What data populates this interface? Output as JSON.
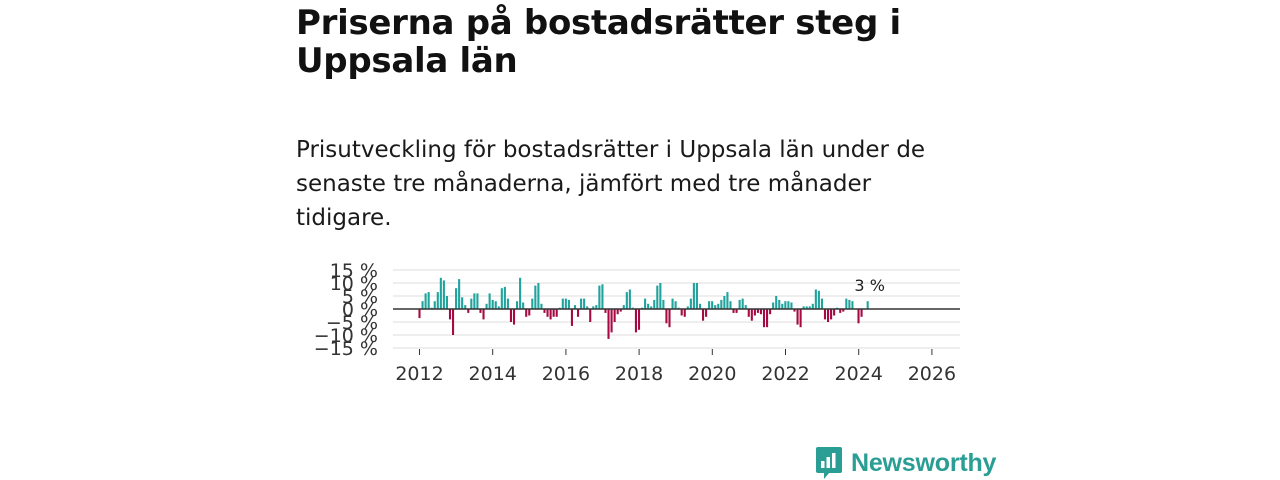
{
  "title": "Priserna på bostadsrätter steg i Uppsala län",
  "subtitle": "Prisutveckling för bostadsrätter i Uppsala län under de senaste tre månaderna, jämfört med tre månader tidigare.",
  "brand": {
    "name": "Newsworthy",
    "color": "#2a9d94",
    "icon": "newsworthy-logo-icon"
  },
  "colors": {
    "positive": "#1fa39c",
    "negative": "#a60a42",
    "grid": "#dddddd",
    "zero": "#333333"
  },
  "chart_data": {
    "type": "bar",
    "title": "",
    "xlabel": "",
    "ylabel": "",
    "ylim": [
      -15,
      15
    ],
    "y_ticks": [
      15,
      10,
      5,
      0,
      -5,
      -10,
      -15
    ],
    "y_tick_labels": [
      "15 %",
      "10 %",
      "5 %",
      "0 %",
      "−5 %",
      "−10 %",
      "−15 %"
    ],
    "x_ticks": [
      2012,
      2014,
      2016,
      2018,
      2020,
      2022,
      2024,
      2026
    ],
    "x_tick_labels": [
      "2012",
      "2014",
      "2016",
      "2018",
      "2020",
      "2022",
      "2024",
      "2026"
    ],
    "x_start": 2012.0,
    "x_step": 0.0833,
    "series": [
      {
        "name": "Prisutveckling",
        "values": [
          -3.5,
          3,
          6,
          6.5,
          0.5,
          3,
          6.5,
          12,
          11,
          5,
          -4,
          -10,
          8,
          11.5,
          4.5,
          1.5,
          -1.5,
          4,
          6,
          6,
          -1.5,
          -4,
          2,
          6,
          3.5,
          3,
          1,
          8,
          8.5,
          4,
          -5,
          -6,
          3,
          12,
          2.5,
          -3,
          -2.5,
          4,
          9,
          10,
          2,
          -1.5,
          -3,
          -4,
          -3,
          -3,
          0.5,
          4,
          4,
          3.5,
          -6.5,
          1.5,
          -3,
          4,
          4,
          1,
          -5,
          1,
          1.5,
          9,
          9.5,
          -1.5,
          -11.5,
          -9,
          -5,
          -2,
          -1,
          1.5,
          6.5,
          7.5,
          0.5,
          -9,
          -8,
          0.5,
          4,
          2,
          1,
          3.5,
          9,
          10,
          3.5,
          -5.5,
          -7,
          4,
          3,
          0.5,
          -2.5,
          -3,
          1,
          4,
          10,
          10,
          2,
          -4.5,
          -3,
          3,
          3,
          1.5,
          2,
          3.5,
          5,
          6.5,
          3,
          -1.5,
          -1.5,
          3.5,
          4,
          1.5,
          -3,
          -4.5,
          -2.5,
          -1.5,
          -2,
          -7,
          -7,
          -2,
          2.5,
          5,
          3.5,
          2,
          3,
          3,
          2.5,
          -1,
          -6,
          -7,
          1,
          1,
          1,
          2,
          7.5,
          7,
          4,
          -4,
          -5,
          -4,
          -2.5,
          0.5,
          -1.5,
          -1,
          4,
          3.5,
          3,
          0,
          -5.5,
          -3,
          0,
          3
        ]
      }
    ],
    "annotation": "3 %"
  }
}
